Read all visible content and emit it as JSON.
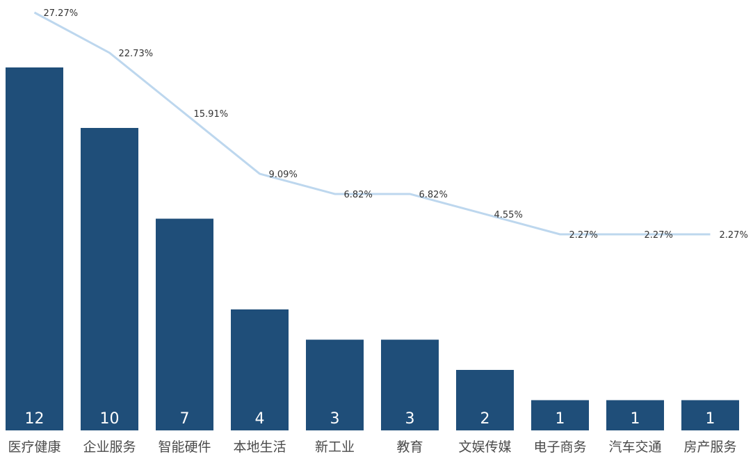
{
  "chart_data": {
    "type": "bar",
    "categories": [
      "医疗健康",
      "企业服务",
      "智能硬件",
      "本地生活",
      "新工业",
      "教育",
      "文娱传媒",
      "电子商务",
      "汽车交通",
      "房产服务"
    ],
    "series": [
      {
        "type": "bar",
        "values": [
          12,
          10,
          7,
          4,
          3,
          3,
          2,
          1,
          1,
          1
        ]
      },
      {
        "type": "line",
        "values": [
          27.27,
          22.73,
          15.91,
          9.09,
          6.82,
          6.82,
          4.55,
          2.27,
          2.27,
          2.27
        ],
        "labels": [
          "27.27%",
          "22.73%",
          "15.91%",
          "9.09%",
          "6.82%",
          "6.82%",
          "4.55%",
          "2.27%",
          "2.27%",
          "2.27%"
        ]
      }
    ],
    "bar_value_labels": [
      "12",
      "10",
      "7",
      "4",
      "3",
      "3",
      "2",
      "1",
      "1",
      "1"
    ],
    "bar_color": "#1f4e79",
    "line_color": "#bdd7ee",
    "ylim_bar": [
      0,
      12
    ],
    "ylim_line": [
      0,
      27.27
    ],
    "title": "",
    "xlabel": "",
    "ylabel": "",
    "grid": false,
    "legend": "none"
  }
}
